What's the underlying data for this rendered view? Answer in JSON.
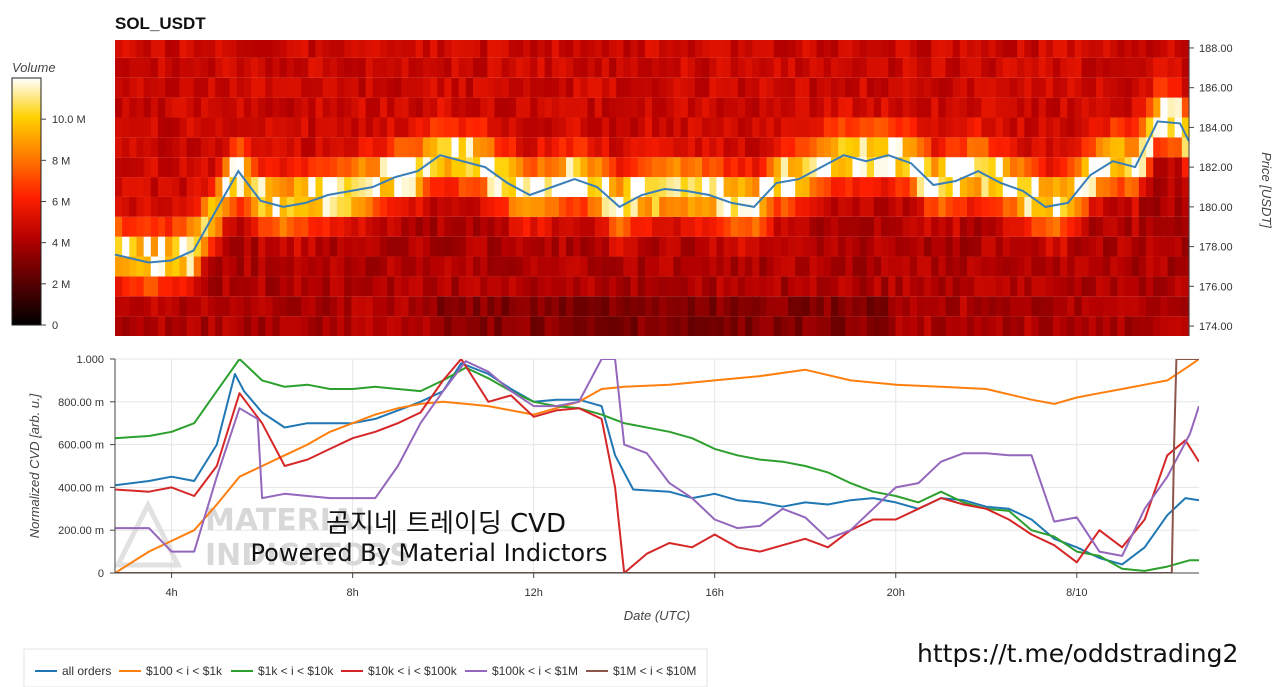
{
  "title": "SOL_USDT",
  "colorbar": {
    "label": "Volume",
    "ticks": [
      "0",
      "2 M",
      "4 M",
      "6 M",
      "8 M",
      "10.0 M"
    ],
    "max": 12000000
  },
  "price_axis": {
    "label": "Price [USDT]",
    "ticks": [
      "174.00",
      "176.00",
      "178.00",
      "180.00",
      "182.00",
      "184.00",
      "186.00",
      "188.00"
    ],
    "range": [
      173.5,
      188.4
    ]
  },
  "cvd_axis": {
    "label": "Normalized CVD [arb. u.]",
    "ticks": [
      "0",
      "200.00 m",
      "400.00 m",
      "600.00 m",
      "800.00 m",
      "1.000"
    ],
    "range": [
      0,
      1
    ]
  },
  "x_axis": {
    "label": "Date (UTC)",
    "ticks": [
      "4h",
      "8h",
      "12h",
      "16h",
      "20h",
      "8/10"
    ],
    "range_hours": [
      2.75,
      26.7
    ]
  },
  "watermark": {
    "line1": "곰지네 트레이딩 CVD",
    "line2": "Powered By Material Indictors",
    "logo_line1": "MATERIAL",
    "logo_line2": "INDICATORS"
  },
  "link": "https://t.me/oddstrading2",
  "colors": {
    "all_orders": "#1f77b4",
    "b100_1k": "#ff7f0e",
    "b1k_10k": "#2ca02c",
    "b10k_100k": "#d62728",
    "b100k_1m": "#9467bd",
    "b1m_10m": "#8c564b",
    "price_line": "#3a7fb8"
  },
  "chart_data": [
    {
      "type": "heatmap",
      "title": "SOL_USDT",
      "ylabel": "Price [USDT]",
      "ylim": [
        173.5,
        188.4
      ],
      "value_label": "Volume",
      "price_line": {
        "x": [
          2.75,
          3.5,
          4,
          4.5,
          5,
          5.5,
          6,
          6.5,
          7,
          7.5,
          8,
          8.5,
          9,
          9.5,
          10,
          10.5,
          11,
          11.5,
          12,
          12.5,
          13,
          13.5,
          14,
          14.5,
          15,
          15.5,
          16,
          16.5,
          17,
          17.5,
          18,
          18.5,
          19,
          19.5,
          20,
          20.5,
          21,
          21.5,
          22,
          22.5,
          23,
          23.5,
          24,
          24.5,
          25,
          25.5,
          26,
          26.5,
          26.7
        ],
        "y": [
          177.6,
          177.2,
          177.3,
          177.8,
          179.8,
          181.8,
          180.3,
          180.0,
          180.2,
          180.6,
          180.8,
          181.0,
          181.5,
          181.8,
          182.6,
          182.3,
          182.0,
          181.2,
          180.6,
          181.0,
          181.4,
          181.0,
          180.0,
          180.6,
          180.9,
          180.8,
          180.6,
          180.2,
          180.0,
          181.2,
          181.4,
          182.0,
          182.6,
          182.3,
          182.6,
          182.2,
          181.1,
          181.3,
          181.8,
          181.2,
          180.8,
          180.0,
          180.2,
          181.6,
          182.3,
          182.0,
          184.3,
          184.2,
          183.3
        ]
      }
    },
    {
      "type": "line",
      "xlabel": "Date (UTC)",
      "ylabel": "Normalized CVD [arb. u.]",
      "ylim": [
        0,
        1
      ],
      "series": [
        {
          "name": "all orders",
          "color": "#1f77b4",
          "x": [
            2.75,
            3.5,
            4,
            4.5,
            5,
            5.4,
            5.6,
            6,
            6.5,
            7,
            7.5,
            8,
            8.5,
            9,
            9.5,
            10,
            10.4,
            11,
            11.5,
            12,
            12.5,
            13,
            13.5,
            13.8,
            14.2,
            15,
            15.5,
            16,
            16.5,
            17,
            17.5,
            18,
            18.5,
            19,
            19.5,
            20,
            20.5,
            21,
            21.5,
            22,
            22.5,
            23,
            23.5,
            24,
            24.5,
            25,
            25.5,
            26,
            26.4,
            26.7
          ],
          "y": [
            0.41,
            0.43,
            0.45,
            0.43,
            0.6,
            0.93,
            0.85,
            0.75,
            0.68,
            0.7,
            0.7,
            0.7,
            0.72,
            0.76,
            0.8,
            0.85,
            0.98,
            0.93,
            0.86,
            0.8,
            0.81,
            0.81,
            0.78,
            0.55,
            0.39,
            0.38,
            0.35,
            0.37,
            0.34,
            0.33,
            0.31,
            0.33,
            0.32,
            0.34,
            0.35,
            0.33,
            0.3,
            0.35,
            0.34,
            0.31,
            0.3,
            0.25,
            0.16,
            0.12,
            0.07,
            0.04,
            0.12,
            0.27,
            0.35,
            0.34
          ]
        },
        {
          "name": "$100 < i < $1k",
          "color": "#ff7f0e",
          "x": [
            2.75,
            3.5,
            4,
            4.5,
            5,
            5.5,
            6,
            6.5,
            7,
            7.5,
            8,
            8.5,
            9,
            9.5,
            10,
            10.5,
            11,
            11.5,
            12,
            12.5,
            13,
            13.5,
            14,
            15,
            16,
            17,
            18,
            19,
            20,
            21,
            22,
            23,
            23.5,
            24,
            24.5,
            25,
            25.5,
            26,
            26.5,
            26.7
          ],
          "y": [
            0.0,
            0.1,
            0.15,
            0.2,
            0.32,
            0.45,
            0.5,
            0.55,
            0.6,
            0.66,
            0.7,
            0.74,
            0.77,
            0.79,
            0.8,
            0.79,
            0.78,
            0.76,
            0.74,
            0.77,
            0.8,
            0.86,
            0.87,
            0.88,
            0.9,
            0.92,
            0.95,
            0.9,
            0.88,
            0.87,
            0.86,
            0.81,
            0.79,
            0.82,
            0.84,
            0.86,
            0.88,
            0.9,
            0.97,
            1.0
          ]
        },
        {
          "name": "$1k < i < $10k",
          "color": "#2ca02c",
          "x": [
            2.75,
            3.5,
            4,
            4.5,
            5,
            5.5,
            6,
            6.5,
            7,
            7.5,
            8,
            8.5,
            9,
            9.5,
            10,
            10.5,
            11,
            11.5,
            12,
            12.5,
            13,
            13.5,
            14,
            15,
            15.5,
            16,
            16.5,
            17,
            17.5,
            18,
            18.5,
            19,
            19.5,
            20,
            20.5,
            21,
            21.5,
            22,
            22.5,
            23,
            23.5,
            24,
            24.5,
            25,
            25.5,
            26,
            26.5,
            26.7
          ],
          "y": [
            0.63,
            0.64,
            0.66,
            0.7,
            0.85,
            1.0,
            0.9,
            0.87,
            0.88,
            0.86,
            0.86,
            0.87,
            0.86,
            0.85,
            0.9,
            0.96,
            0.91,
            0.85,
            0.8,
            0.78,
            0.77,
            0.74,
            0.7,
            0.66,
            0.63,
            0.58,
            0.55,
            0.53,
            0.52,
            0.5,
            0.47,
            0.42,
            0.38,
            0.36,
            0.33,
            0.38,
            0.33,
            0.3,
            0.29,
            0.2,
            0.17,
            0.1,
            0.08,
            0.02,
            0.01,
            0.03,
            0.06,
            0.06
          ]
        },
        {
          "name": "$10k < i < $100k",
          "color": "#d62728",
          "x": [
            2.75,
            3.5,
            4,
            4.5,
            5,
            5.5,
            6,
            6.5,
            7,
            7.5,
            8,
            8.5,
            9,
            9.5,
            10,
            10.4,
            11,
            11.5,
            12,
            12.5,
            13,
            13.5,
            13.8,
            14,
            14.5,
            15,
            15.5,
            16,
            16.5,
            17,
            17.5,
            18,
            18.5,
            19,
            19.5,
            20,
            20.5,
            21,
            21.5,
            22,
            22.5,
            23,
            23.5,
            24,
            24.5,
            25,
            25.5,
            26,
            26.4,
            26.7
          ],
          "y": [
            0.39,
            0.38,
            0.4,
            0.36,
            0.5,
            0.84,
            0.7,
            0.5,
            0.53,
            0.58,
            0.63,
            0.66,
            0.7,
            0.75,
            0.9,
            1.0,
            0.8,
            0.83,
            0.73,
            0.76,
            0.77,
            0.72,
            0.4,
            0.0,
            0.09,
            0.14,
            0.12,
            0.18,
            0.12,
            0.1,
            0.13,
            0.16,
            0.12,
            0.2,
            0.25,
            0.25,
            0.3,
            0.35,
            0.32,
            0.3,
            0.25,
            0.18,
            0.13,
            0.05,
            0.2,
            0.12,
            0.25,
            0.55,
            0.62,
            0.52
          ]
        },
        {
          "name": "$100k < i < $1M",
          "color": "#9467bd",
          "x": [
            2.75,
            3.5,
            4,
            4.5,
            5,
            5.5,
            5.9,
            6,
            6.5,
            7,
            7.5,
            8,
            8.5,
            9,
            9.5,
            10,
            10.5,
            11,
            11.5,
            12,
            12.5,
            13,
            13.5,
            13.8,
            14,
            14.5,
            15,
            15.5,
            16,
            16.5,
            17,
            17.5,
            18,
            18.5,
            19,
            19.5,
            20,
            20.5,
            21,
            21.5,
            22,
            22.5,
            23,
            23.5,
            24,
            24.5,
            25,
            25.5,
            26,
            26.5,
            26.7
          ],
          "y": [
            0.21,
            0.21,
            0.1,
            0.1,
            0.45,
            0.77,
            0.72,
            0.35,
            0.37,
            0.36,
            0.35,
            0.35,
            0.35,
            0.5,
            0.7,
            0.85,
            0.99,
            0.94,
            0.85,
            0.78,
            0.78,
            0.8,
            1.0,
            1.0,
            0.6,
            0.56,
            0.42,
            0.35,
            0.25,
            0.21,
            0.22,
            0.3,
            0.26,
            0.16,
            0.2,
            0.3,
            0.4,
            0.42,
            0.52,
            0.56,
            0.56,
            0.55,
            0.55,
            0.24,
            0.26,
            0.1,
            0.08,
            0.3,
            0.45,
            0.65,
            0.78
          ]
        },
        {
          "name": "$1M < i < $10M",
          "color": "#8c564b",
          "x": [
            2.75,
            26.1,
            26.15,
            26.2,
            26.3,
            26.7
          ],
          "y": [
            0.0,
            0.0,
            0.6,
            1.0,
            1.0,
            1.0
          ]
        }
      ]
    }
  ]
}
